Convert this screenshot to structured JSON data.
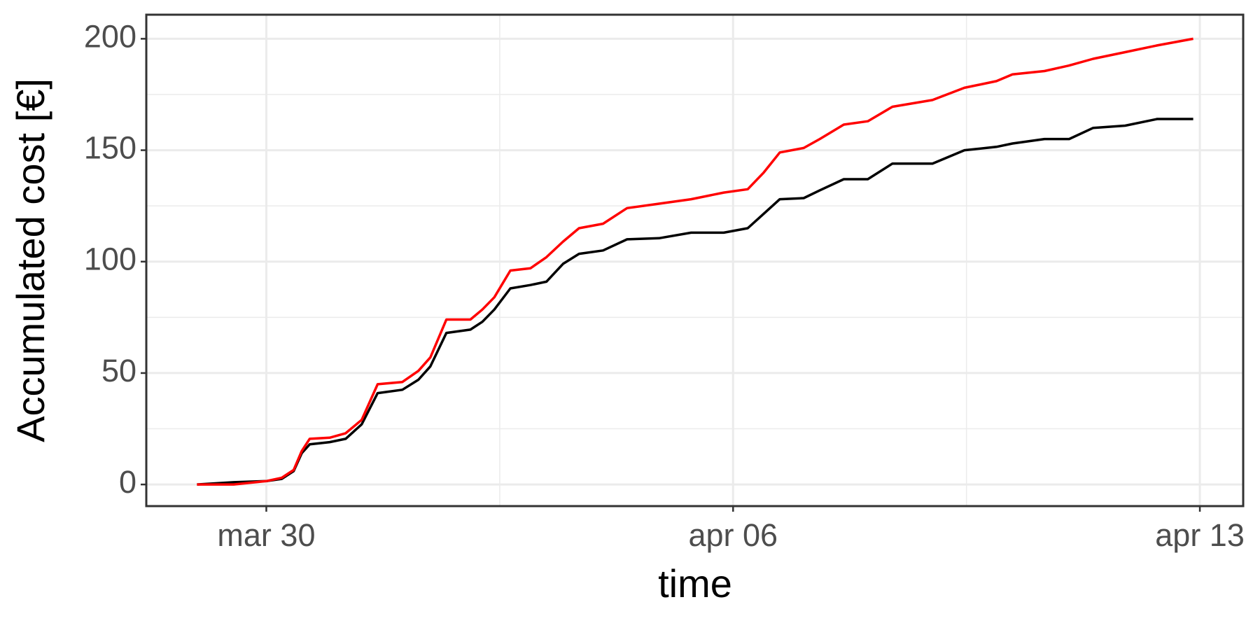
{
  "chart_data": {
    "type": "line",
    "xlabel": "time",
    "ylabel": "Accumulated cost [€]",
    "x": [
      28.96,
      29.51,
      30,
      30.23,
      30.41,
      30.53,
      30.65,
      30.95,
      31.19,
      31.43,
      31.67,
      32.04,
      32.28,
      32.46,
      32.7,
      33.06,
      33.24,
      33.42,
      33.66,
      33.96,
      34.2,
      34.45,
      34.69,
      35.05,
      35.41,
      35.89,
      36.37,
      36.86,
      37.22,
      37.46,
      37.7,
      38.06,
      38.3,
      38.66,
      39.02,
      39.39,
      39.99,
      40.47,
      40.95,
      41.19,
      41.67,
      42.04,
      42.4,
      42.88,
      43.36,
      43.9
    ],
    "series": [
      {
        "color": "#000000",
        "values": [
          0,
          1,
          1.5,
          2.5,
          6,
          14,
          18,
          19,
          20.5,
          27,
          41,
          42.5,
          47,
          53,
          68,
          69.5,
          73,
          78.5,
          88,
          89.5,
          91,
          99,
          103.5,
          105,
          110,
          110.5,
          113,
          113,
          115,
          121.5,
          128,
          128.5,
          132,
          137,
          137,
          144,
          144,
          150,
          151.5,
          153,
          155,
          155,
          160,
          161,
          164,
          164
        ]
      },
      {
        "color": "#ff0000",
        "values": [
          0,
          0,
          1.5,
          3,
          6.5,
          15,
          20.5,
          21,
          23,
          29,
          45,
          46,
          51,
          57,
          74,
          74,
          78.5,
          84,
          96,
          97,
          102,
          109,
          115,
          117,
          124,
          126,
          128,
          131,
          132.5,
          140,
          149,
          151,
          155,
          161.5,
          163,
          169.5,
          172.5,
          178,
          181,
          184,
          185.5,
          188,
          191,
          194,
          197,
          200
        ]
      }
    ],
    "xlim": [
      28.2,
      44.65
    ],
    "xticks": [
      {
        "value": 30,
        "label": "mar 30"
      },
      {
        "value": 37,
        "label": "apr 06"
      },
      {
        "value": 44,
        "label": "apr 13"
      }
    ],
    "minor_xticks": [
      33.5,
      40.5
    ],
    "ylim": [
      -9.7,
      210.8
    ],
    "yticks": [
      0,
      50,
      100,
      150,
      200
    ],
    "minor_yticks": [
      25,
      75,
      125,
      175
    ],
    "grid": true
  }
}
